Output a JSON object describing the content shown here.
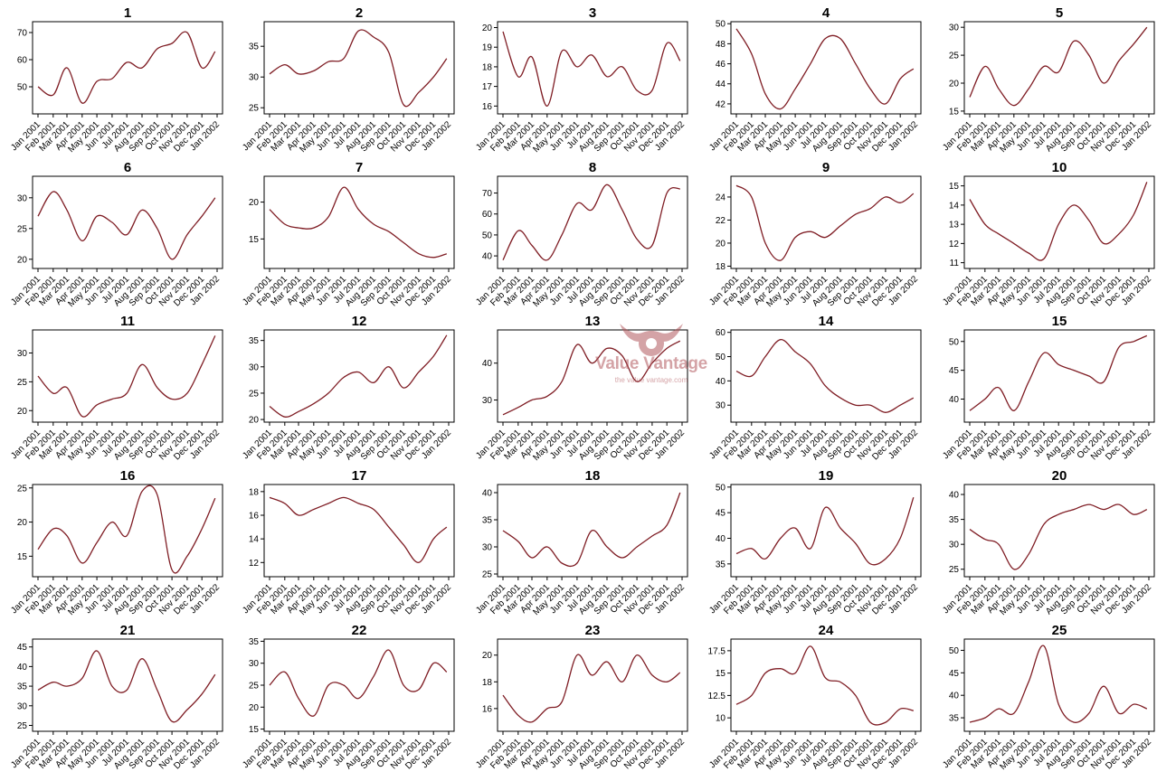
{
  "figure": {
    "line_color": "#7f1d24",
    "x_ticks": [
      "Jan 2001",
      "Feb 2001",
      "Mar 2001",
      "Apr 2001",
      "May 2001",
      "Jun 2001",
      "Jul 2001",
      "Aug 2001",
      "Sep 2001",
      "Oct 2001",
      "Nov 2001",
      "Dec 2001",
      "Jan 2002"
    ]
  },
  "watermark": {
    "name": "Value Vantage",
    "url": "the value vantage.com",
    "color": "#b2585e"
  },
  "chart_data": [
    {
      "type": "line",
      "title": "1",
      "x": [
        "2001-01-01",
        "2001-02-01",
        "2001-03-01",
        "2001-04-01",
        "2001-05-01",
        "2001-06-01",
        "2001-07-01",
        "2001-08-01",
        "2001-09-01",
        "2001-10-01",
        "2001-11-01",
        "2001-12-01",
        "2001-12-28"
      ],
      "y": [
        50,
        47,
        57,
        44,
        52,
        53,
        59,
        57,
        64,
        66,
        70,
        57,
        63
      ],
      "yticks": [
        50,
        60,
        70
      ],
      "ylim": [
        40,
        74
      ]
    },
    {
      "type": "line",
      "title": "2",
      "x": [
        "2001-01-01",
        "2001-02-01",
        "2001-03-01",
        "2001-04-01",
        "2001-05-01",
        "2001-06-01",
        "2001-07-01",
        "2001-08-01",
        "2001-09-01",
        "2001-10-01",
        "2001-11-01",
        "2001-12-01",
        "2001-12-28"
      ],
      "y": [
        30.5,
        32,
        30.5,
        31,
        32.5,
        33,
        37.5,
        36.5,
        34,
        25.5,
        27.5,
        30,
        33
      ],
      "yticks": [
        25,
        30,
        35
      ],
      "ylim": [
        24,
        39
      ]
    },
    {
      "type": "line",
      "title": "3",
      "x": [
        "2001-01-01",
        "2001-02-01",
        "2001-03-01",
        "2001-04-01",
        "2001-05-01",
        "2001-06-01",
        "2001-07-01",
        "2001-08-01",
        "2001-09-01",
        "2001-10-01",
        "2001-11-01",
        "2001-12-01",
        "2001-12-28"
      ],
      "y": [
        19.8,
        17.5,
        18.5,
        16,
        18.8,
        18,
        18.6,
        17.5,
        18,
        16.8,
        16.8,
        19.2,
        18.3
      ],
      "yticks": [
        16,
        17,
        18,
        19,
        20
      ],
      "ylim": [
        15.6,
        20.3
      ]
    },
    {
      "type": "line",
      "title": "4",
      "x": [
        "2001-01-01",
        "2001-02-01",
        "2001-03-01",
        "2001-04-01",
        "2001-05-01",
        "2001-06-01",
        "2001-07-01",
        "2001-08-01",
        "2001-09-01",
        "2001-10-01",
        "2001-11-01",
        "2001-12-01",
        "2001-12-28"
      ],
      "y": [
        49.5,
        47,
        43,
        41.5,
        43.5,
        46,
        48.5,
        48.5,
        46,
        43.5,
        42,
        44.5,
        45.5
      ],
      "yticks": [
        42,
        44,
        46,
        48,
        50
      ],
      "ylim": [
        41,
        50.2
      ]
    },
    {
      "type": "line",
      "title": "5",
      "x": [
        "2001-01-01",
        "2001-02-01",
        "2001-03-01",
        "2001-04-01",
        "2001-05-01",
        "2001-06-01",
        "2001-07-01",
        "2001-08-01",
        "2001-09-01",
        "2001-10-01",
        "2001-11-01",
        "2001-12-01",
        "2001-12-28"
      ],
      "y": [
        17.5,
        23,
        19,
        16,
        19,
        23,
        22,
        27.5,
        25,
        20,
        24,
        27,
        30
      ],
      "yticks": [
        15,
        20,
        25,
        30
      ],
      "ylim": [
        14.5,
        31
      ]
    },
    {
      "type": "line",
      "title": "6",
      "x": [
        "2001-01-01",
        "2001-02-01",
        "2001-03-01",
        "2001-04-01",
        "2001-05-01",
        "2001-06-01",
        "2001-07-01",
        "2001-08-01",
        "2001-09-01",
        "2001-10-01",
        "2001-11-01",
        "2001-12-01",
        "2001-12-28"
      ],
      "y": [
        27,
        31,
        28,
        23,
        27,
        26,
        24,
        28,
        25,
        20,
        24,
        27,
        30
      ],
      "yticks": [
        20,
        25,
        30
      ],
      "ylim": [
        18.5,
        33.5
      ]
    },
    {
      "type": "line",
      "title": "7",
      "x": [
        "2001-01-01",
        "2001-02-01",
        "2001-03-01",
        "2001-04-01",
        "2001-05-01",
        "2001-06-01",
        "2001-07-01",
        "2001-08-01",
        "2001-09-01",
        "2001-10-01",
        "2001-11-01",
        "2001-12-01",
        "2001-12-28"
      ],
      "y": [
        19,
        17,
        16.5,
        16.5,
        18,
        22,
        19,
        17,
        16,
        14.5,
        13,
        12.5,
        13
      ],
      "yticks": [
        15,
        20
      ],
      "ylim": [
        11,
        23.5
      ]
    },
    {
      "type": "line",
      "title": "8",
      "x": [
        "2001-01-01",
        "2001-02-01",
        "2001-03-01",
        "2001-04-01",
        "2001-05-01",
        "2001-06-01",
        "2001-07-01",
        "2001-08-01",
        "2001-09-01",
        "2001-10-01",
        "2001-11-01",
        "2001-12-01",
        "2001-12-28"
      ],
      "y": [
        38,
        52,
        45,
        38,
        50,
        65,
        62,
        74,
        62,
        48,
        45,
        70,
        72
      ],
      "yticks": [
        40,
        50,
        60,
        70
      ],
      "ylim": [
        34,
        78
      ]
    },
    {
      "type": "line",
      "title": "9",
      "x": [
        "2001-01-01",
        "2001-02-01",
        "2001-03-01",
        "2001-04-01",
        "2001-05-01",
        "2001-06-01",
        "2001-07-01",
        "2001-08-01",
        "2001-09-01",
        "2001-10-01",
        "2001-11-01",
        "2001-12-01",
        "2001-12-28"
      ],
      "y": [
        25,
        24,
        20,
        18.5,
        20.5,
        21,
        20.5,
        21.5,
        22.5,
        23,
        24,
        23.5,
        24.3
      ],
      "yticks": [
        18,
        20,
        22,
        24
      ],
      "ylim": [
        17.8,
        25.8
      ]
    },
    {
      "type": "line",
      "title": "10",
      "x": [
        "2001-01-01",
        "2001-02-01",
        "2001-03-01",
        "2001-04-01",
        "2001-05-01",
        "2001-06-01",
        "2001-07-01",
        "2001-08-01",
        "2001-09-01",
        "2001-10-01",
        "2001-11-01",
        "2001-12-01",
        "2001-12-28"
      ],
      "y": [
        14.3,
        13,
        12.5,
        12,
        11.5,
        11.2,
        13,
        14,
        13.2,
        12,
        12.5,
        13.5,
        15.2
      ],
      "yticks": [
        11,
        12,
        13,
        14,
        15
      ],
      "ylim": [
        10.7,
        15.5
      ]
    },
    {
      "type": "line",
      "title": "11",
      "x": [
        "2001-01-01",
        "2001-02-01",
        "2001-03-01",
        "2001-04-01",
        "2001-05-01",
        "2001-06-01",
        "2001-07-01",
        "2001-08-01",
        "2001-09-01",
        "2001-10-01",
        "2001-11-01",
        "2001-12-01",
        "2001-12-28"
      ],
      "y": [
        26,
        23,
        24,
        19,
        21,
        22,
        23,
        28,
        24,
        22,
        23,
        28,
        33
      ],
      "yticks": [
        20,
        25,
        30
      ],
      "ylim": [
        18,
        34
      ]
    },
    {
      "type": "line",
      "title": "12",
      "x": [
        "2001-01-01",
        "2001-02-01",
        "2001-03-01",
        "2001-04-01",
        "2001-05-01",
        "2001-06-01",
        "2001-07-01",
        "2001-08-01",
        "2001-09-01",
        "2001-10-01",
        "2001-11-01",
        "2001-12-01",
        "2001-12-28"
      ],
      "y": [
        22.5,
        20.5,
        21.5,
        23,
        25,
        28,
        29,
        27,
        30,
        26,
        29,
        32,
        36
      ],
      "yticks": [
        20,
        25,
        30,
        35
      ],
      "ylim": [
        19.5,
        37
      ]
    },
    {
      "type": "line",
      "title": "13",
      "x": [
        "2001-01-01",
        "2001-02-01",
        "2001-03-01",
        "2001-04-01",
        "2001-05-01",
        "2001-06-01",
        "2001-07-01",
        "2001-08-01",
        "2001-09-01",
        "2001-10-01",
        "2001-11-01",
        "2001-12-01",
        "2001-12-28"
      ],
      "y": [
        26,
        28,
        30,
        31,
        35,
        45,
        40,
        44,
        42,
        35,
        40,
        44,
        46
      ],
      "yticks": [
        30,
        40
      ],
      "ylim": [
        24,
        49
      ]
    },
    {
      "type": "line",
      "title": "14",
      "x": [
        "2001-01-01",
        "2001-02-01",
        "2001-03-01",
        "2001-04-01",
        "2001-05-01",
        "2001-06-01",
        "2001-07-01",
        "2001-08-01",
        "2001-09-01",
        "2001-10-01",
        "2001-11-01",
        "2001-12-01",
        "2001-12-28"
      ],
      "y": [
        44,
        42,
        50,
        57,
        52,
        47,
        38,
        33,
        30,
        30,
        27,
        30,
        33
      ],
      "yticks": [
        30,
        40,
        50,
        60
      ],
      "ylim": [
        23,
        61
      ]
    },
    {
      "type": "line",
      "title": "15",
      "x": [
        "2001-01-01",
        "2001-02-01",
        "2001-03-01",
        "2001-04-01",
        "2001-05-01",
        "2001-06-01",
        "2001-07-01",
        "2001-08-01",
        "2001-09-01",
        "2001-10-01",
        "2001-11-01",
        "2001-12-01",
        "2001-12-28"
      ],
      "y": [
        38,
        40,
        42,
        38,
        43,
        48,
        46,
        45,
        44,
        43,
        49,
        50,
        51
      ],
      "yticks": [
        40,
        45,
        50
      ],
      "ylim": [
        36,
        52
      ]
    },
    {
      "type": "line",
      "title": "16",
      "x": [
        "2001-01-01",
        "2001-02-01",
        "2001-03-01",
        "2001-04-01",
        "2001-05-01",
        "2001-06-01",
        "2001-07-01",
        "2001-08-01",
        "2001-09-01",
        "2001-10-01",
        "2001-11-01",
        "2001-12-01",
        "2001-12-28"
      ],
      "y": [
        16,
        19,
        18,
        14,
        17,
        20,
        18,
        24.5,
        24,
        13,
        15,
        19,
        23.5
      ],
      "yticks": [
        15,
        20,
        25
      ],
      "ylim": [
        12,
        25.5
      ]
    },
    {
      "type": "line",
      "title": "17",
      "x": [
        "2001-01-01",
        "2001-02-01",
        "2001-03-01",
        "2001-04-01",
        "2001-05-01",
        "2001-06-01",
        "2001-07-01",
        "2001-08-01",
        "2001-09-01",
        "2001-10-01",
        "2001-11-01",
        "2001-12-01",
        "2001-12-28"
      ],
      "y": [
        17.5,
        17,
        16,
        16.5,
        17,
        17.5,
        17,
        16.5,
        15,
        13.5,
        12,
        14,
        15
      ],
      "yticks": [
        12,
        14,
        16,
        18
      ],
      "ylim": [
        10.8,
        18.6
      ]
    },
    {
      "type": "line",
      "title": "18",
      "x": [
        "2001-01-01",
        "2001-02-01",
        "2001-03-01",
        "2001-04-01",
        "2001-05-01",
        "2001-06-01",
        "2001-07-01",
        "2001-08-01",
        "2001-09-01",
        "2001-10-01",
        "2001-11-01",
        "2001-12-01",
        "2001-12-28"
      ],
      "y": [
        33,
        31,
        28,
        30,
        27,
        27,
        33,
        30,
        28,
        30,
        32,
        34,
        40
      ],
      "yticks": [
        25,
        30,
        35,
        40
      ],
      "ylim": [
        24.5,
        41.5
      ]
    },
    {
      "type": "line",
      "title": "19",
      "x": [
        "2001-01-01",
        "2001-02-01",
        "2001-03-01",
        "2001-04-01",
        "2001-05-01",
        "2001-06-01",
        "2001-07-01",
        "2001-08-01",
        "2001-09-01",
        "2001-10-01",
        "2001-11-01",
        "2001-12-01",
        "2001-12-28"
      ],
      "y": [
        37,
        38,
        36,
        40,
        42,
        38,
        46,
        42,
        39,
        35,
        36,
        40,
        48
      ],
      "yticks": [
        35,
        40,
        45,
        50
      ],
      "ylim": [
        32.5,
        50.5
      ]
    },
    {
      "type": "line",
      "title": "20",
      "x": [
        "2001-01-01",
        "2001-02-01",
        "2001-03-01",
        "2001-04-01",
        "2001-05-01",
        "2001-06-01",
        "2001-07-01",
        "2001-08-01",
        "2001-09-01",
        "2001-10-01",
        "2001-11-01",
        "2001-12-01",
        "2001-12-28"
      ],
      "y": [
        33,
        31,
        30,
        25,
        28,
        34,
        36,
        37,
        38,
        37,
        38,
        36,
        37
      ],
      "yticks": [
        25,
        30,
        35,
        40
      ],
      "ylim": [
        23.5,
        42
      ]
    },
    {
      "type": "line",
      "title": "21",
      "x": [
        "2001-01-01",
        "2001-02-01",
        "2001-03-01",
        "2001-04-01",
        "2001-05-01",
        "2001-06-01",
        "2001-07-01",
        "2001-08-01",
        "2001-09-01",
        "2001-10-01",
        "2001-11-01",
        "2001-12-01",
        "2001-12-28"
      ],
      "y": [
        34,
        36,
        35,
        37,
        44,
        35,
        34,
        42,
        34,
        26,
        29,
        33,
        38
      ],
      "yticks": [
        25,
        30,
        35,
        40,
        45
      ],
      "ylim": [
        23.5,
        47
      ]
    },
    {
      "type": "line",
      "title": "22",
      "x": [
        "2001-01-01",
        "2001-02-01",
        "2001-03-01",
        "2001-04-01",
        "2001-05-01",
        "2001-06-01",
        "2001-07-01",
        "2001-08-01",
        "2001-09-01",
        "2001-10-01",
        "2001-11-01",
        "2001-12-01",
        "2001-12-28"
      ],
      "y": [
        25,
        28,
        22,
        18,
        25,
        25,
        22,
        27,
        33,
        25,
        24,
        30,
        28
      ],
      "yticks": [
        15,
        20,
        25,
        30,
        35
      ],
      "ylim": [
        14.5,
        35.5
      ]
    },
    {
      "type": "line",
      "title": "23",
      "x": [
        "2001-01-01",
        "2001-02-01",
        "2001-03-01",
        "2001-04-01",
        "2001-05-01",
        "2001-06-01",
        "2001-07-01",
        "2001-08-01",
        "2001-09-01",
        "2001-10-01",
        "2001-11-01",
        "2001-12-01",
        "2001-12-28"
      ],
      "y": [
        17,
        15.5,
        15,
        16,
        16.5,
        20,
        18.5,
        19.5,
        18,
        20,
        18.5,
        18,
        18.7
      ],
      "yticks": [
        16,
        18,
        20
      ],
      "ylim": [
        14.3,
        21.2
      ]
    },
    {
      "type": "line",
      "title": "24",
      "x": [
        "2001-01-01",
        "2001-02-01",
        "2001-03-01",
        "2001-04-01",
        "2001-05-01",
        "2001-06-01",
        "2001-07-01",
        "2001-08-01",
        "2001-09-01",
        "2001-10-01",
        "2001-11-01",
        "2001-12-01",
        "2001-12-28"
      ],
      "y": [
        11.5,
        12.5,
        15,
        15.5,
        15,
        18,
        14.5,
        14,
        12.5,
        9.5,
        9.5,
        11,
        10.8
      ],
      "yticks": [
        10,
        12.5,
        15,
        17.5
      ],
      "ylim": [
        8.5,
        18.8
      ]
    },
    {
      "type": "line",
      "title": "25",
      "x": [
        "2001-01-01",
        "2001-02-01",
        "2001-03-01",
        "2001-04-01",
        "2001-05-01",
        "2001-06-01",
        "2001-07-01",
        "2001-08-01",
        "2001-09-01",
        "2001-10-01",
        "2001-11-01",
        "2001-12-01",
        "2001-12-28"
      ],
      "y": [
        34,
        35,
        37,
        36,
        43,
        51,
        38,
        34,
        36,
        42,
        36,
        38,
        37
      ],
      "yticks": [
        35,
        40,
        45,
        50
      ],
      "ylim": [
        32,
        52.5
      ]
    }
  ]
}
